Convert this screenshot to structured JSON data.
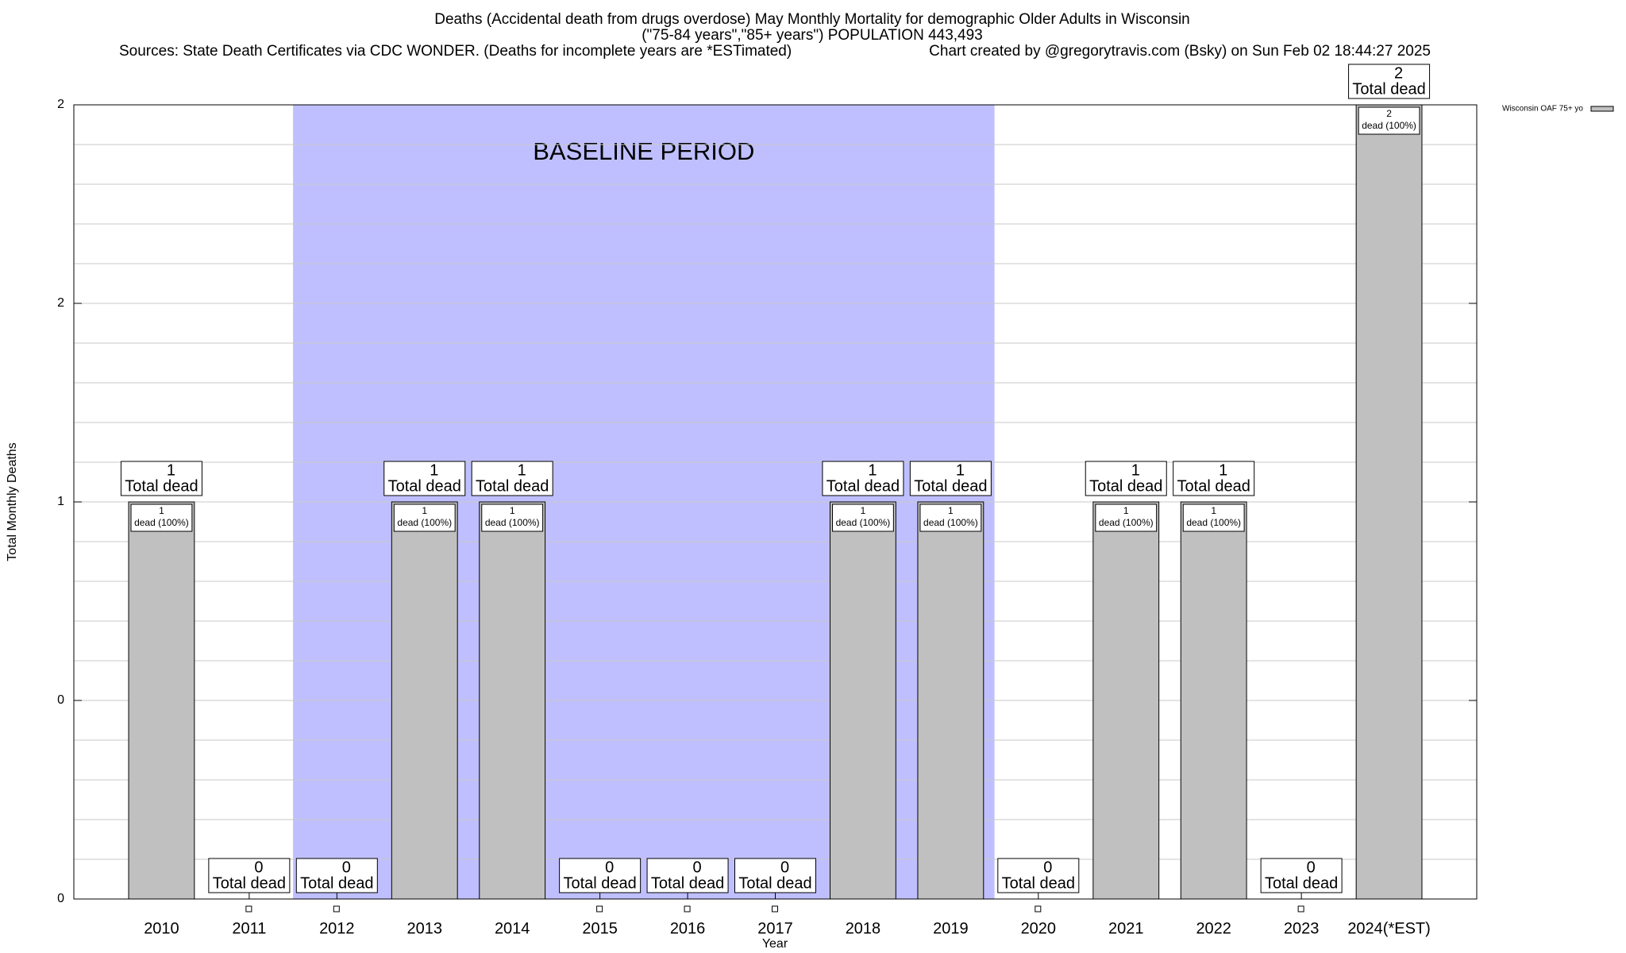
{
  "chart_data": {
    "type": "bar",
    "title": "Deaths (Accidental death from drugs overdose) May Monthly Mortality for demographic Older Adults in Wisconsin",
    "subtitle": "(\"75-84 years\",\"85+ years\") POPULATION 443,493",
    "source": "Sources: State Death Certificates via CDC WONDER. (Deaths for incomplete years are *ESTimated)",
    "credit": "Chart created by @gregorytravis.com (Bsky) on Sun Feb 02 18:44:27 2025",
    "x_label": "Year",
    "y_label": "Total Monthly Deaths",
    "categories": [
      "2010",
      "2011",
      "2012",
      "2013",
      "2014",
      "2015",
      "2016",
      "2017",
      "2018",
      "2019",
      "2020",
      "2021",
      "2022",
      "2023",
      "2024(*EST)"
    ],
    "series": [
      {
        "name": "Wisconsin OAF 75+ yo",
        "color": "#c0c0c0",
        "values": [
          1,
          0,
          0,
          1,
          1,
          0,
          0,
          0,
          1,
          1,
          0,
          1,
          1,
          0,
          2
        ]
      }
    ],
    "total_label": "Total dead",
    "inner_label": "dead (100%)",
    "baseline_period": {
      "from": "2012",
      "to": "2019",
      "label": "BASELINE PERIOD",
      "color": "#bfbfff"
    },
    "ylim": [
      0,
      2
    ],
    "yticks": [
      0,
      {
        "value": 0.5,
        "label": "0"
      },
      1,
      {
        "value": 1.5,
        "label": "2"
      },
      2
    ],
    "grid": true,
    "legend": "top-right"
  }
}
